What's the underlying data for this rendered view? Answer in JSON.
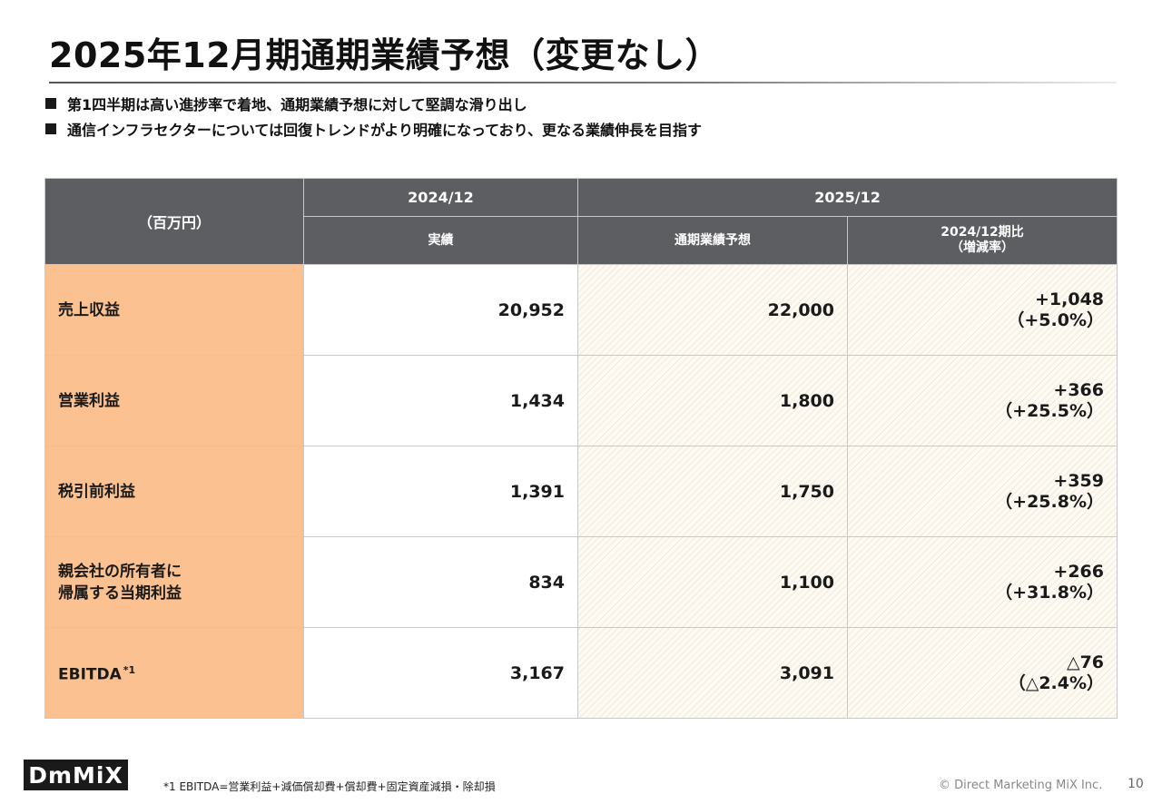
{
  "title": "2025年12月期通期業績予想（変更なし）",
  "bullets": [
    "第1四半期は高い進捗率で着地、通期業績予想に対して堅調な滑り出し",
    "通信インフラセクターについては回復トレンドがより明確になっており、更なる業績伸長を目指す"
  ],
  "table": {
    "unit_header": "（百万円）",
    "year_2024": "2024/12",
    "year_2025": "2025/12",
    "col_actual": "実績",
    "col_forecast": "通期業績予想",
    "col_compare_line1": "2024/12期比",
    "col_compare_line2": "（増減率）",
    "rows": [
      {
        "label_line1": "売上収益",
        "label_line2": "",
        "actual": "20,952",
        "forecast": "22,000",
        "diff": "+1,048",
        "rate": "（+5.0%）",
        "footnote": ""
      },
      {
        "label_line1": "営業利益",
        "label_line2": "",
        "actual": "1,434",
        "forecast": "1,800",
        "diff": "+366",
        "rate": "（+25.5%）",
        "footnote": ""
      },
      {
        "label_line1": "税引前利益",
        "label_line2": "",
        "actual": "1,391",
        "forecast": "1,750",
        "diff": "+359",
        "rate": "（+25.8%）",
        "footnote": ""
      },
      {
        "label_line1": "親会社の所有者に",
        "label_line2": "帰属する当期利益",
        "actual": "834",
        "forecast": "1,100",
        "diff": "+266",
        "rate": "（+31.8%）",
        "footnote": ""
      },
      {
        "label_line1": "EBITDA",
        "label_line2": "",
        "actual": "3,167",
        "forecast": "3,091",
        "diff": "△76",
        "rate": "（△2.4%）",
        "footnote": "*1"
      }
    ]
  },
  "logo_text": "DmMiX",
  "footnote": "*1  EBITDA=営業利益+減価償却費+償却費+固定資産減損・除却損",
  "copyright": "© Direct Marketing MiX Inc.",
  "page_number": "10"
}
